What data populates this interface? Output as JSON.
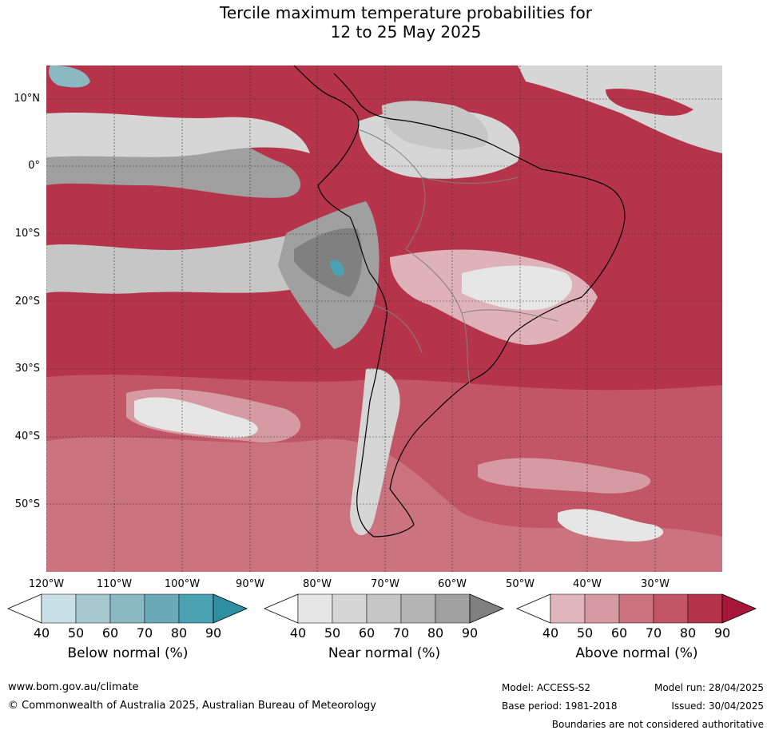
{
  "title_line1": "Tercile maximum temperature probabilities for",
  "title_line2": "12 to 25 May 2025",
  "lat_labels": [
    "10°N",
    "0°",
    "10°S",
    "20°S",
    "30°S",
    "40°S",
    "50°S"
  ],
  "lon_labels": [
    "120°W",
    "110°W",
    "100°W",
    "90°W",
    "80°W",
    "70°W",
    "60°W",
    "50°W",
    "40°W",
    "30°W"
  ],
  "legends": [
    {
      "title": "Below normal (%)",
      "colors": [
        "#ffffff",
        "#c8e0e6",
        "#a6c9cf",
        "#8ab9c3",
        "#6aaab8",
        "#4aa1b1",
        "#2f8fa2"
      ]
    },
    {
      "title": "Near normal (%)",
      "colors": [
        "#ffffff",
        "#e6e6e6",
        "#d6d6d6",
        "#c6c6c6",
        "#b4b4b4",
        "#a0a0a0",
        "#808080"
      ]
    },
    {
      "title": "Above normal (%)",
      "colors": [
        "#ffffff",
        "#e0b5bb",
        "#d69aa2",
        "#cb7480",
        "#c25566",
        "#b5344a",
        "#a8163a"
      ]
    }
  ],
  "tick_values": [
    "40",
    "50",
    "60",
    "70",
    "80",
    "90"
  ],
  "footer": {
    "website": "www.bom.gov.au/climate",
    "copyright": "© Commonwealth of Australia 2025, Australian Bureau of Meteorology",
    "model": "Model: ACCESS-S2",
    "model_run": "Model run: 28/04/2025",
    "base_period": "Base period: 1981-2018",
    "issued": "Issued: 30/04/2025",
    "disclaimer": "Boundaries are not considered authoritative"
  },
  "colors": {
    "ocean_dominant": "#b71c3c",
    "land_pale": "#dfb2b9",
    "near_grey": "#a6a6a6",
    "coast": "#000000",
    "borders": "#808080"
  }
}
